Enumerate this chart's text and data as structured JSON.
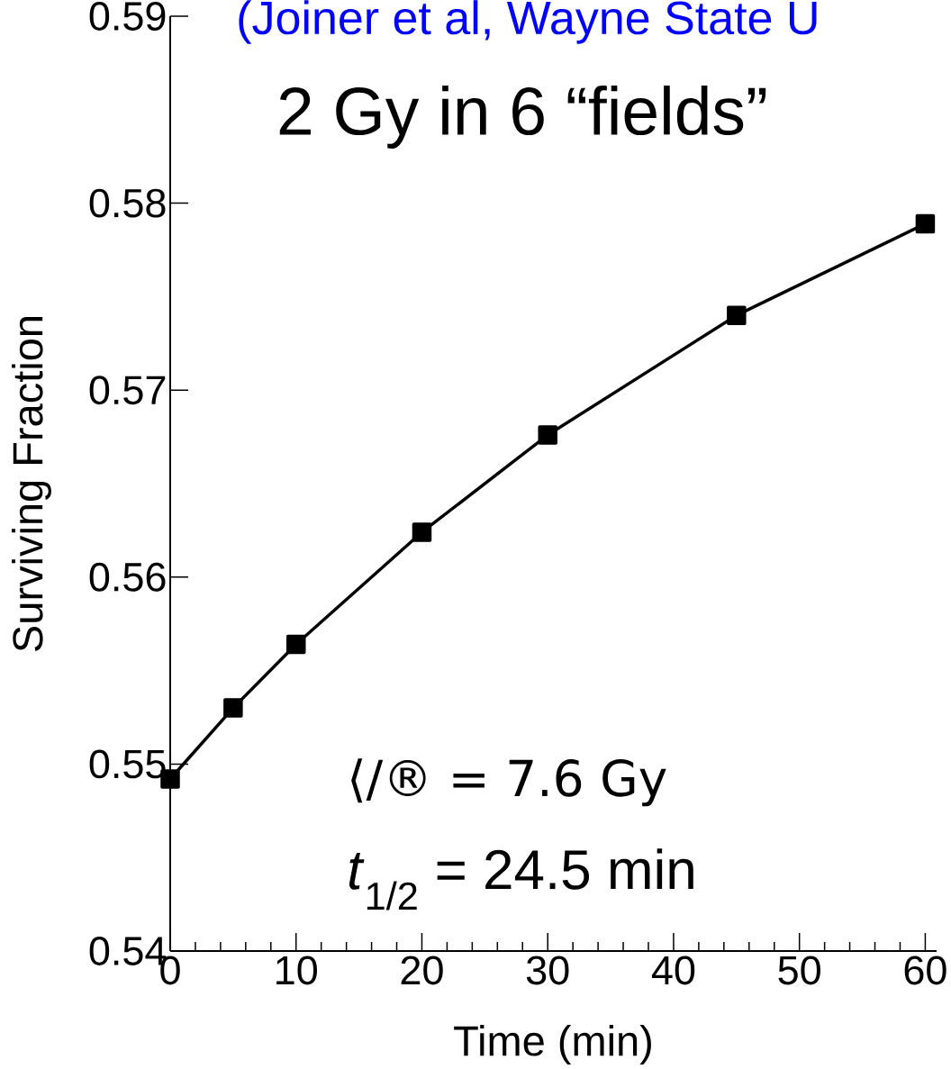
{
  "chart_data": {
    "type": "line",
    "title": "2 Gy in 6 “fields”",
    "xlabel": "Time (min)",
    "ylabel": "Surviving Fraction",
    "x": [
      0,
      5,
      10,
      20,
      30,
      45,
      60
    ],
    "values": [
      0.5492,
      0.553,
      0.5564,
      0.5624,
      0.5676,
      0.574,
      0.5789
    ],
    "color": "#000000",
    "marker": "square",
    "line_style": "solid",
    "grid": false,
    "xlim": [
      0,
      60.9
    ],
    "xticks": [
      0,
      10,
      20,
      30,
      40,
      50,
      60
    ],
    "ylim": [
      0.54,
      0.59
    ],
    "yticks": [
      0.54,
      0.55,
      0.56,
      0.57,
      0.58,
      0.59
    ],
    "annotations": [
      "(Joiner et al, Wayne State U",
      "⟨/® = 7.6 Gy",
      "*t*$_{1/2}$ = 24.5 min"
    ]
  }
}
